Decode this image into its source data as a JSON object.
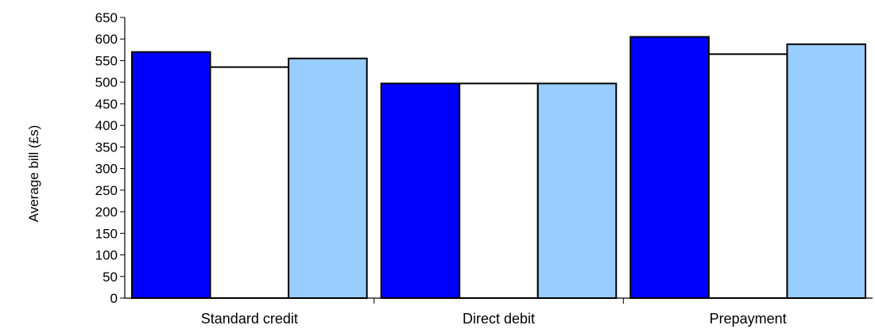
{
  "chart_data": {
    "type": "bar",
    "title": "",
    "xlabel": "",
    "ylabel": "Average bill (£s)",
    "ylim": [
      0,
      650
    ],
    "yticks": [
      0,
      50,
      100,
      150,
      200,
      250,
      300,
      350,
      400,
      450,
      500,
      550,
      600,
      650
    ],
    "grid": false,
    "legend": "none",
    "categories": [
      "Standard credit",
      "Direct debit",
      "Prepayment"
    ],
    "series": [
      {
        "color": "#0000ff",
        "values": [
          570,
          497,
          605
        ]
      },
      {
        "color": "#ffffff",
        "values": [
          535,
          497,
          565
        ]
      },
      {
        "color": "#99ccff",
        "values": [
          555,
          497,
          588
        ]
      }
    ]
  }
}
